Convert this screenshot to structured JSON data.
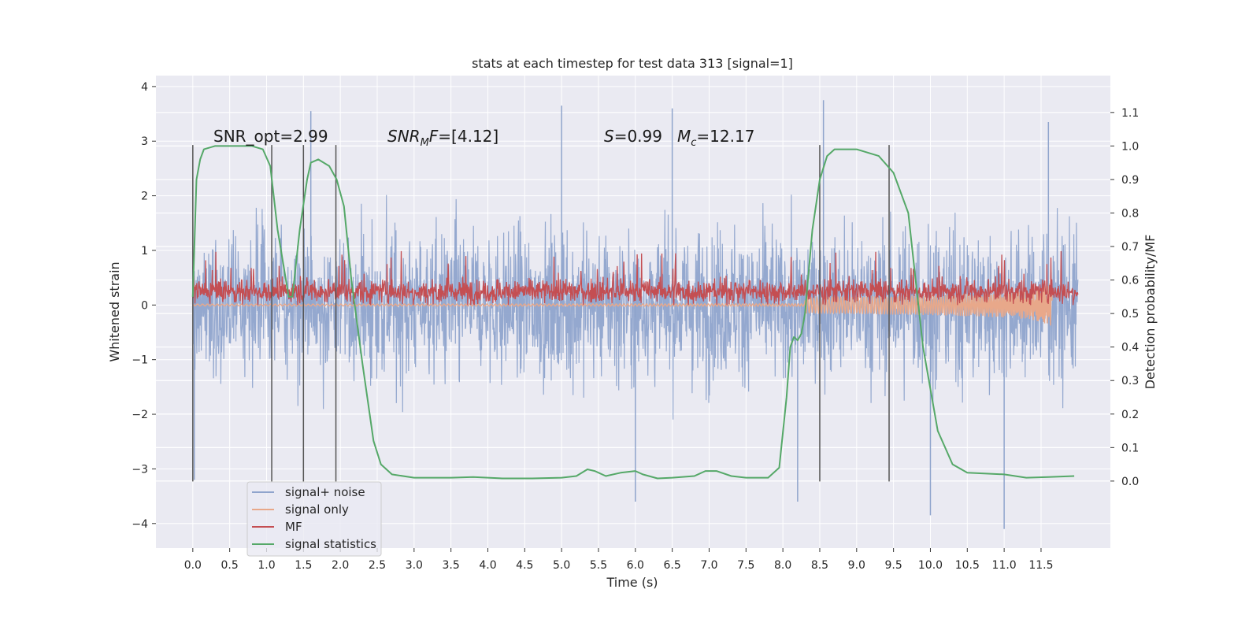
{
  "chart_data": {
    "type": "line",
    "title": "stats at each timestep for test data 313 [signal=1]",
    "xlabel": "Time (s)",
    "ylabel": "Whitened strain",
    "y2label": "Detection probability/MF",
    "xlim": [
      -0.5,
      12.44
    ],
    "ylim": [
      -4.45,
      4.2
    ],
    "y2lim": [
      -0.2,
      1.21
    ],
    "xticks": [
      "0.0",
      "0.5",
      "1.0",
      "1.5",
      "2.0",
      "2.5",
      "3.0",
      "3.5",
      "4.0",
      "4.5",
      "5.0",
      "5.5",
      "6.0",
      "6.5",
      "7.0",
      "7.5",
      "8.0",
      "8.5",
      "9.0",
      "9.5",
      "10.0",
      "10.5",
      "11.0",
      "11.5"
    ],
    "yticks": [
      "−4",
      "−3",
      "−2",
      "−1",
      "0",
      "1",
      "2",
      "3",
      "4"
    ],
    "y2ticks": [
      "0.0",
      "0.1",
      "0.2",
      "0.3",
      "0.4",
      "0.5",
      "0.6",
      "0.7",
      "0.8",
      "0.9",
      "1.0",
      "1.1"
    ],
    "grid": true,
    "legend_position": "lower-left",
    "colors": {
      "background": "#eaeaf2",
      "grid": "#ffffff",
      "signal_noise": "#8fa4cc",
      "signal_only": "#e8a88a",
      "mf": "#c44e52",
      "stats": "#55a868",
      "vlines": "#555555"
    },
    "annotations": {
      "snr_opt": "SNR_opt=2.99",
      "snr_mf_prefix": "SNR",
      "snr_mf_sub": "M",
      "snr_mf_f": "F",
      "snr_mf_value": "=[4.12]",
      "s_var": "S",
      "s_value": "=0.99",
      "mc_var": "M",
      "mc_sub": "c",
      "mc_value": "=12.17"
    },
    "event_lines_x": [
      0.0,
      1.07,
      1.5,
      1.94,
      8.5,
      9.44
    ],
    "series": [
      {
        "name": "signal+ noise",
        "axis": "left",
        "style": "noise",
        "x_range": [
          0.0,
          12.0
        ],
        "typical_band": [
          -1.6,
          1.6
        ],
        "extremes": [
          -3.8,
          3.7
        ],
        "outliers": [
          {
            "x": 0.02,
            "y": -3.2
          },
          {
            "x": 1.6,
            "y": 3.55
          },
          {
            "x": 5.0,
            "y": 3.65
          },
          {
            "x": 6.5,
            "y": 3.6
          },
          {
            "x": 6.0,
            "y": -3.6
          },
          {
            "x": 8.55,
            "y": 3.75
          },
          {
            "x": 8.2,
            "y": -3.6
          },
          {
            "x": 10.0,
            "y": -3.85
          },
          {
            "x": 11.0,
            "y": -4.1
          },
          {
            "x": 11.6,
            "y": 3.35
          }
        ]
      },
      {
        "name": "signal only",
        "axis": "left",
        "style": "chirp",
        "x_range": [
          0.0,
          11.65
        ],
        "final_amplitude": 0.45
      },
      {
        "name": "MF",
        "axis": "left",
        "style": "noise-positive",
        "x_range": [
          0.0,
          12.0
        ],
        "typical_band": [
          0.0,
          0.5
        ],
        "max": 1.0
      },
      {
        "name": "signal statistics",
        "axis": "right",
        "style": "line",
        "x": [
          0.0,
          0.05,
          0.1,
          0.15,
          0.3,
          0.5,
          0.8,
          0.95,
          1.05,
          1.15,
          1.3,
          1.35,
          1.45,
          1.55,
          1.6,
          1.7,
          1.85,
          1.95,
          2.05,
          2.15,
          2.3,
          2.45,
          2.55,
          2.7,
          3.0,
          3.5,
          3.8,
          4.2,
          4.6,
          5.0,
          5.2,
          5.35,
          5.45,
          5.6,
          5.8,
          6.0,
          6.1,
          6.3,
          6.5,
          6.8,
          6.95,
          7.1,
          7.3,
          7.5,
          7.8,
          7.95,
          8.05,
          8.1,
          8.15,
          8.2,
          8.25,
          8.3,
          8.4,
          8.5,
          8.6,
          8.7,
          8.8,
          9.0,
          9.3,
          9.5,
          9.7,
          9.8,
          9.9,
          10.1,
          10.3,
          10.5,
          11.0,
          11.3,
          11.6,
          11.95
        ],
        "values": [
          0.55,
          0.9,
          0.96,
          0.99,
          1.0,
          1.0,
          1.0,
          0.99,
          0.94,
          0.75,
          0.55,
          0.55,
          0.75,
          0.9,
          0.95,
          0.96,
          0.94,
          0.9,
          0.82,
          0.6,
          0.35,
          0.12,
          0.05,
          0.02,
          0.01,
          0.01,
          0.012,
          0.008,
          0.008,
          0.01,
          0.015,
          0.035,
          0.03,
          0.015,
          0.025,
          0.03,
          0.02,
          0.008,
          0.01,
          0.015,
          0.03,
          0.03,
          0.015,
          0.01,
          0.01,
          0.04,
          0.25,
          0.4,
          0.43,
          0.42,
          0.44,
          0.5,
          0.75,
          0.9,
          0.97,
          0.99,
          0.99,
          0.99,
          0.97,
          0.92,
          0.8,
          0.6,
          0.4,
          0.15,
          0.05,
          0.025,
          0.02,
          0.01,
          0.012,
          0.015
        ]
      }
    ],
    "legend": [
      "signal+ noise",
      "signal only",
      "MF",
      "signal statistics"
    ]
  }
}
